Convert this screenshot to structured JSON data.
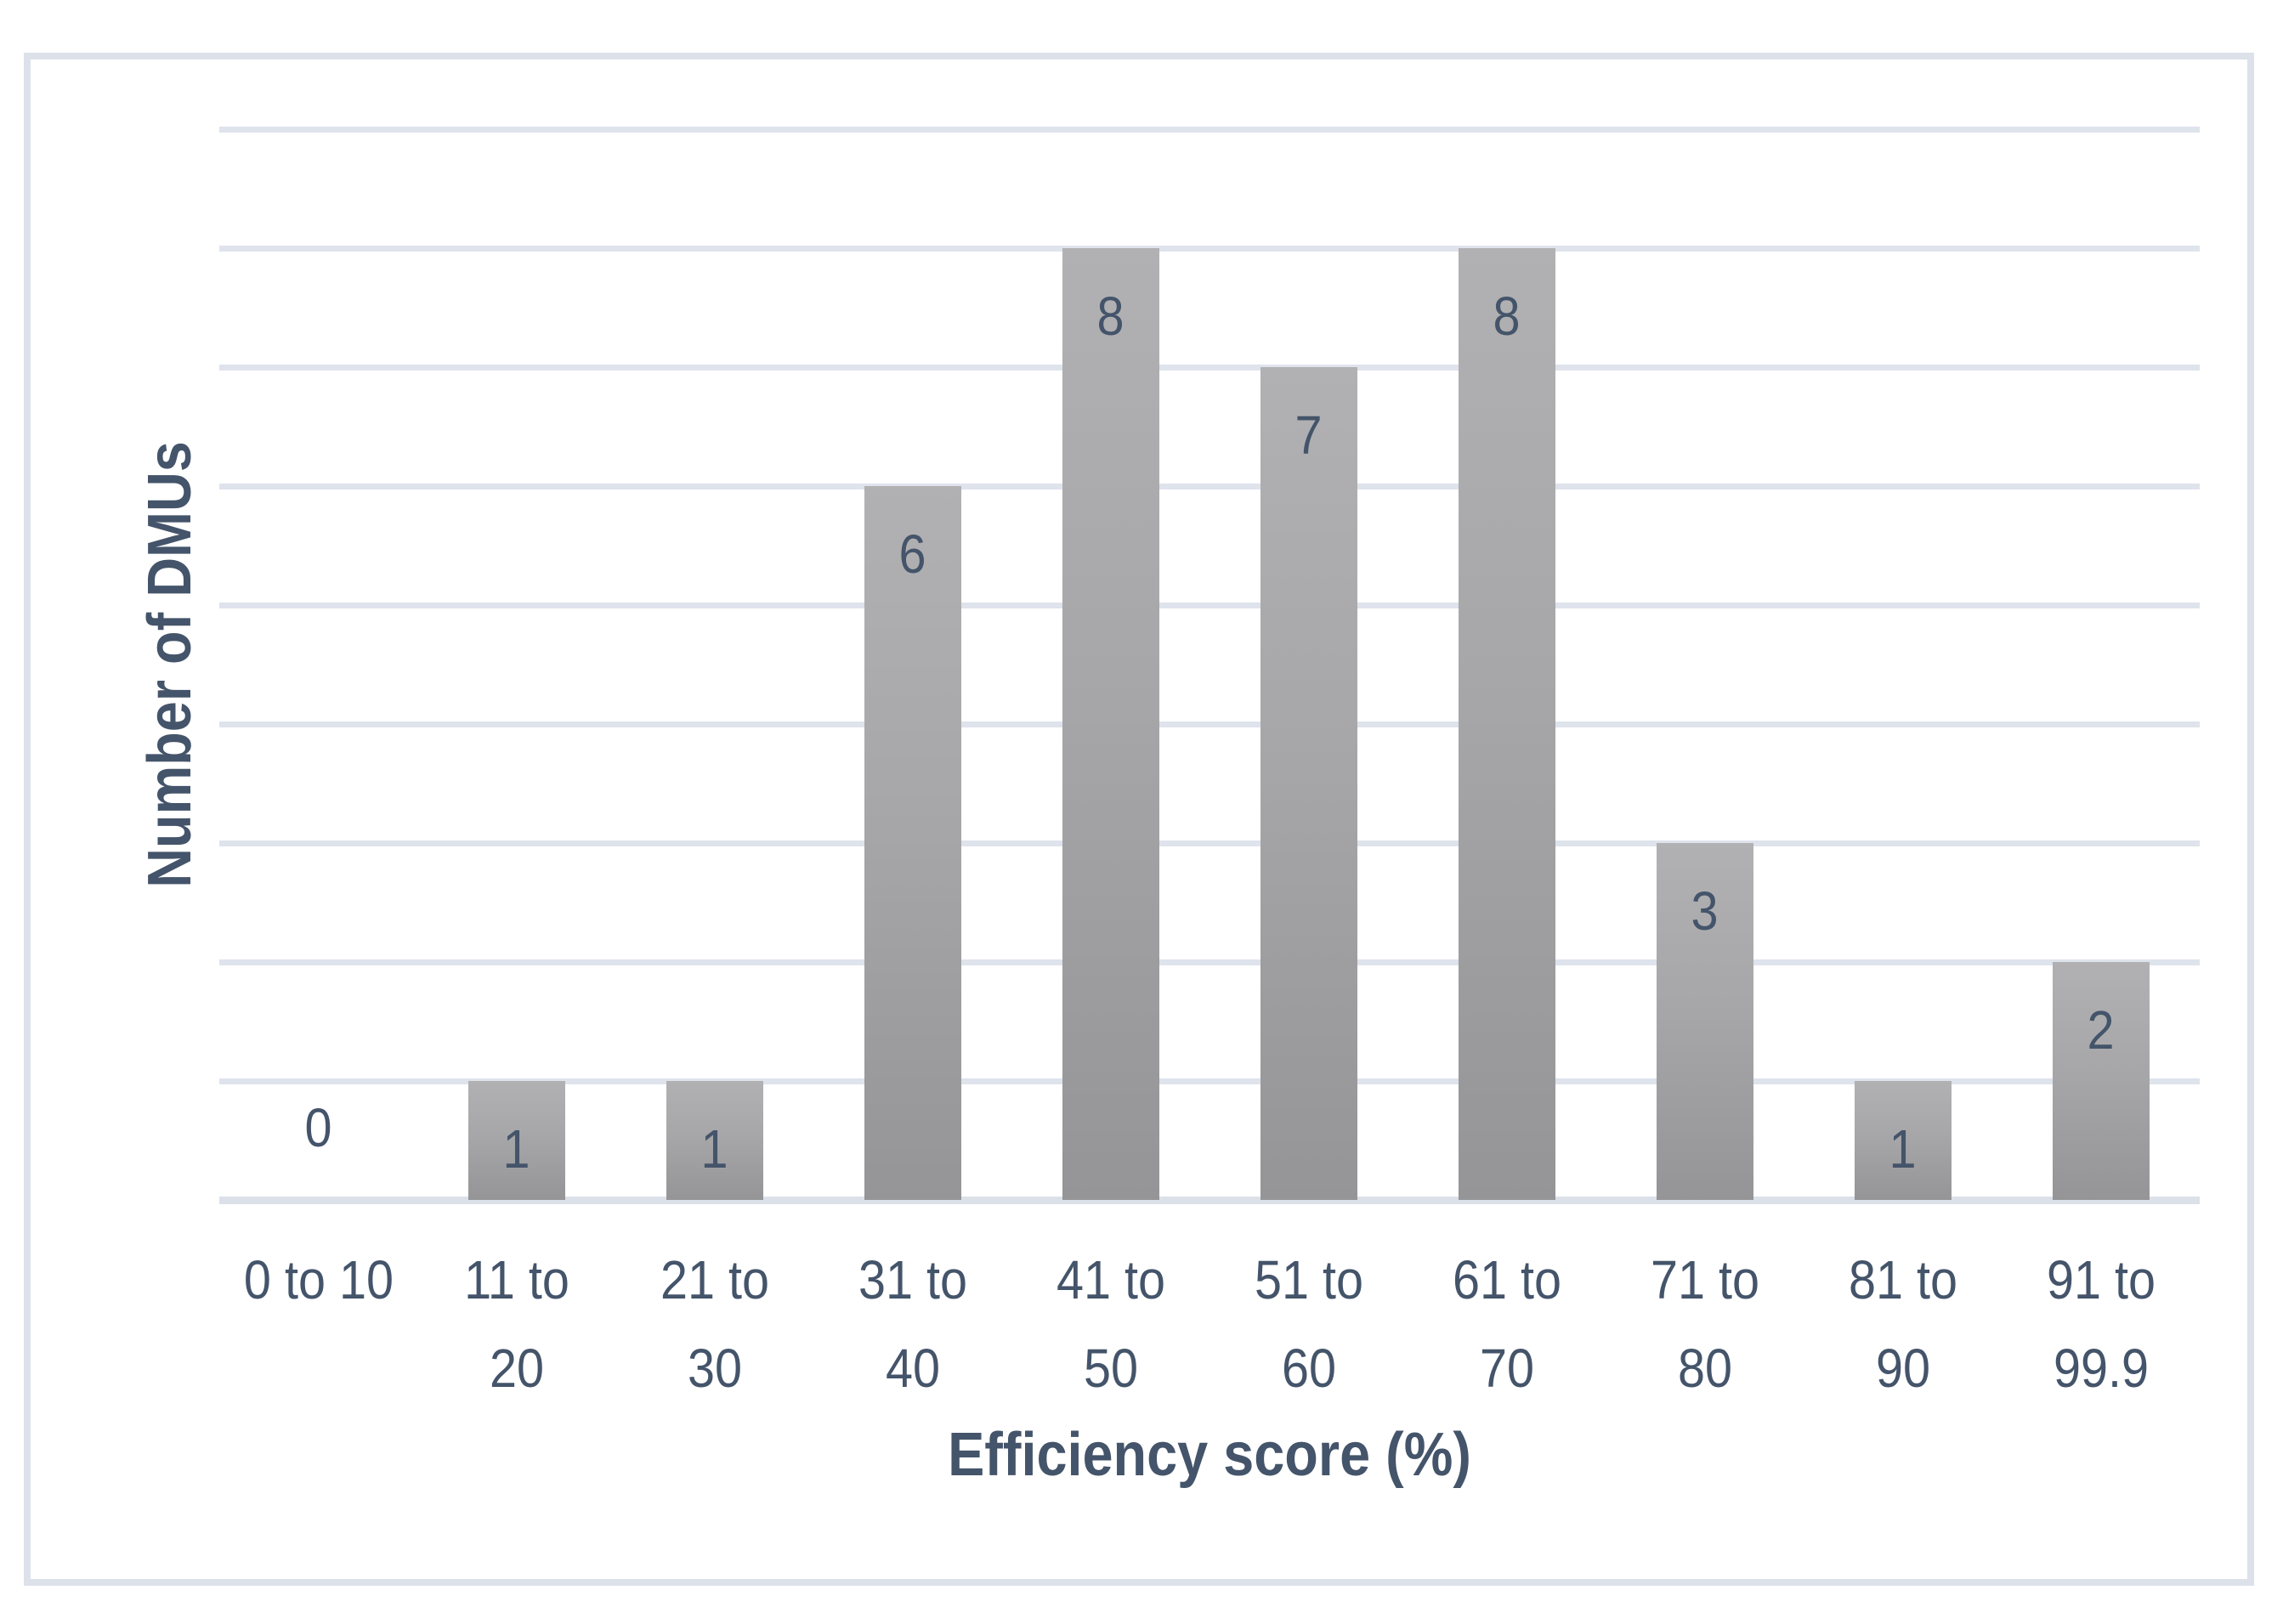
{
  "chart_data": {
    "type": "bar",
    "title": "",
    "categories": [
      "0 to 10",
      "11 to 20",
      "21 to 30",
      "31 to 40",
      "41 to 50",
      "51 to 60",
      "61 to 70",
      "71 to 80",
      "81 to 90",
      "91 to 99.9"
    ],
    "values": [
      0,
      1,
      1,
      6,
      8,
      7,
      8,
      3,
      1,
      2
    ],
    "data_labels": [
      "0",
      "1",
      "1",
      "6",
      "8",
      "7",
      "8",
      "3",
      "1",
      "2"
    ],
    "xlabel": "Efficiency score (%)",
    "ylabel": "Number of DMUs",
    "ylim": [
      0,
      9
    ],
    "gridline_step": 1,
    "grid": "horizontal",
    "y_tick_labels_shown": false,
    "legend": "none",
    "label_placement": "inside-end",
    "colors": {
      "bar_top": "#b1b1b3",
      "bar_bottom": "#959597",
      "text": "#44546a",
      "gridline": "#dee3ec",
      "axis_line": "#dce1e9",
      "chart_border": "#dde1e9",
      "background": "#ffffff"
    }
  }
}
